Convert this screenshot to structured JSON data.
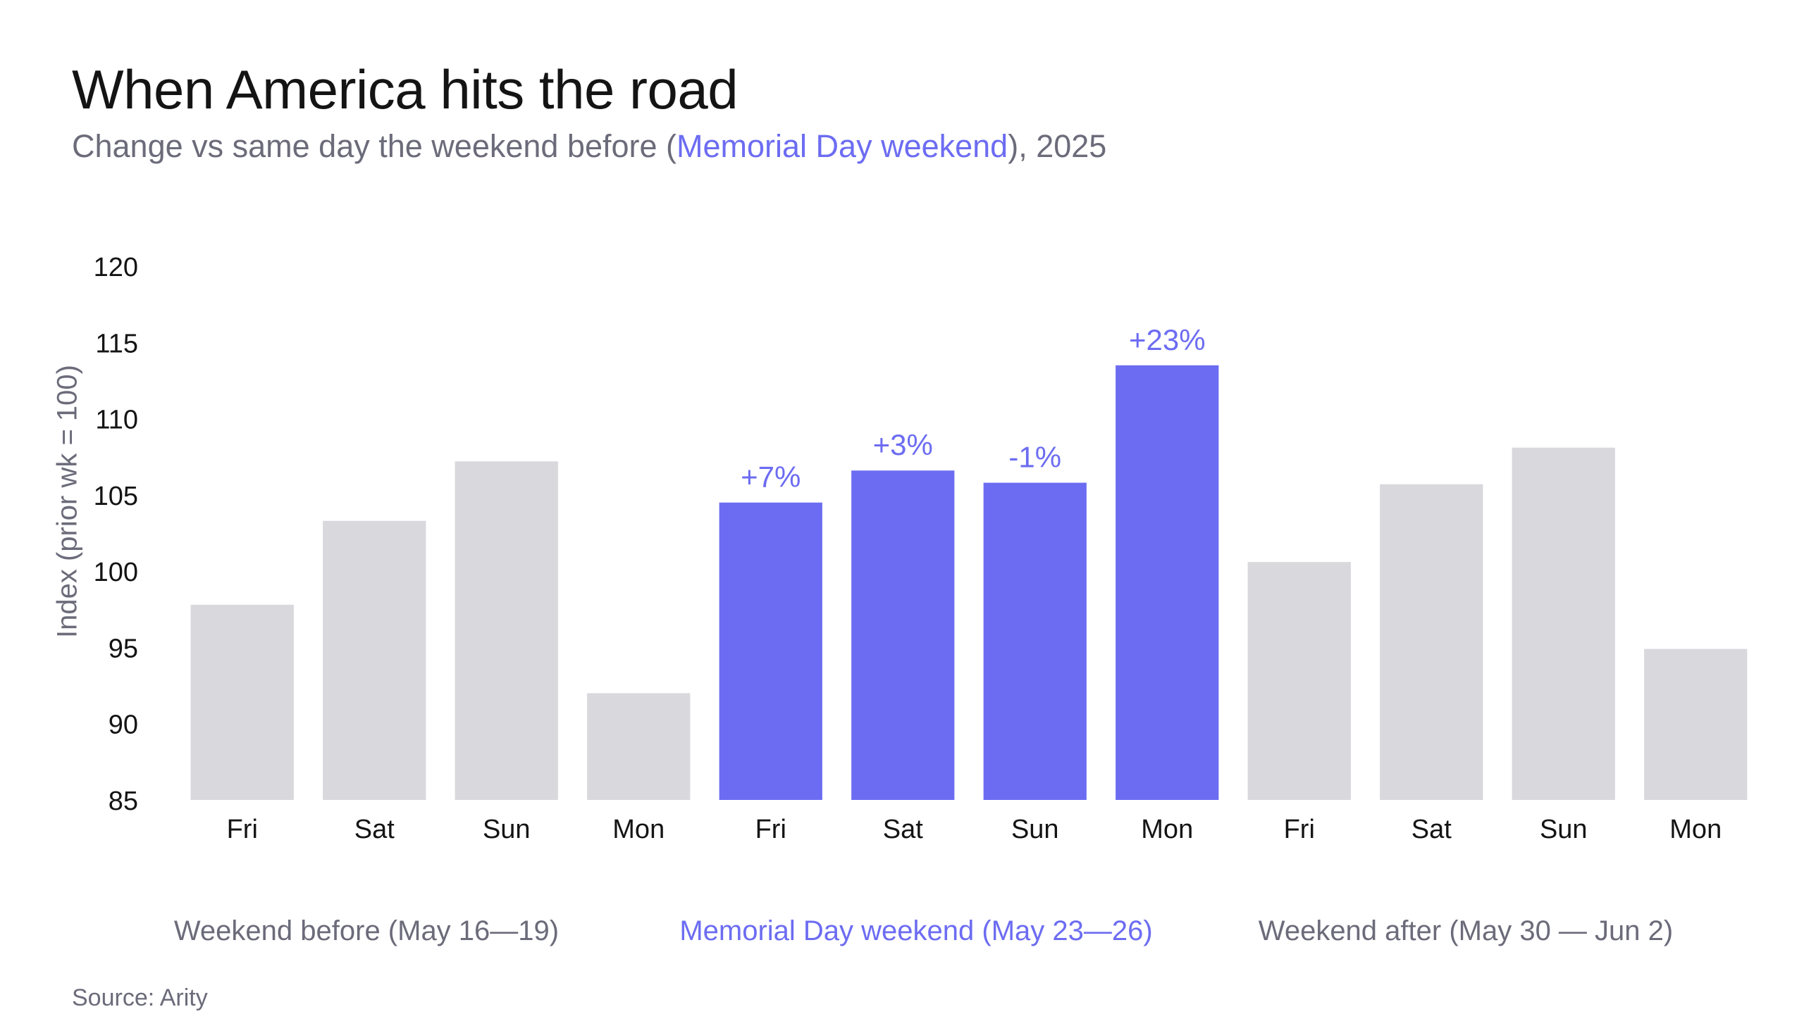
{
  "header": {
    "title": "When America hits the road",
    "subtitle_pre": "Change vs same day the weekend before (",
    "subtitle_highlight": "Memorial Day weekend",
    "subtitle_post": "), 2025"
  },
  "groups": [
    {
      "label": "Weekend before (May 16—19)",
      "highlight": false
    },
    {
      "label": "Memorial Day weekend (May 23—26)",
      "highlight": true
    },
    {
      "label": "Weekend after (May 30 — Jun 2)",
      "highlight": false
    }
  ],
  "source": "Source: Arity",
  "colors": {
    "highlight": "#6c6cf2",
    "muted": "#d8d8dd",
    "text": "#141414",
    "subtle": "#6b6b7a"
  },
  "chart_data": {
    "type": "bar",
    "ylabel": "Index (prior wk = 100)",
    "xlabel": "",
    "ylim": [
      85,
      120
    ],
    "yticks": [
      85,
      90,
      95,
      100,
      105,
      110,
      115,
      120
    ],
    "grid": false,
    "categories": [
      "Fri",
      "Sat",
      "Sun",
      "Mon",
      "Fri",
      "Sat",
      "Sun",
      "Mon",
      "Fri",
      "Sat",
      "Sun",
      "Mon"
    ],
    "values": [
      97.8,
      103.3,
      107.2,
      92.0,
      104.5,
      106.6,
      105.8,
      113.5,
      100.6,
      105.7,
      108.1,
      94.9
    ],
    "highlighted": [
      false,
      false,
      false,
      false,
      true,
      true,
      true,
      true,
      false,
      false,
      false,
      false
    ],
    "data_labels": [
      "",
      "",
      "",
      "",
      "+7%",
      "+3%",
      "-1%",
      "+23%",
      "",
      "",
      "",
      ""
    ]
  }
}
